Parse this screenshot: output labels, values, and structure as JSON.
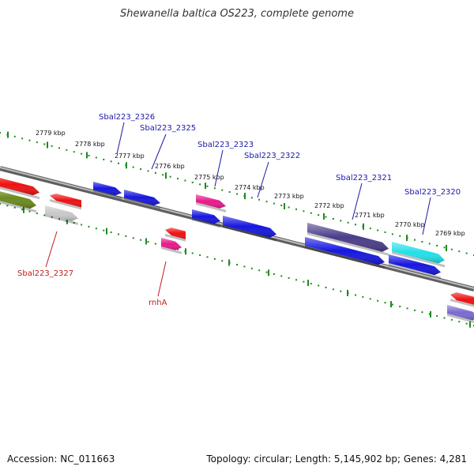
{
  "title": "Shewanella baltica OS223, complete genome",
  "footer": {
    "accession": "Accession: NC_011663",
    "summary": "Topology: circular; Length: 5,145,902 bp; Genes: 4,281"
  },
  "colors": {
    "backbone": "#8a8a8a",
    "ticks": "#1f8a1f",
    "label_blue": "#1a1aa8",
    "label_red": "#c41a1a",
    "blue": "#1616e0",
    "red": "#ee1111",
    "magenta": "#e8188c",
    "dark_purple": "#4a3d8a",
    "cyan": "#22e0e8",
    "olive": "#6b8a1e",
    "gray": "#c8c8c8",
    "lavender": "#7a6ad0"
  },
  "kbp_labels": [
    "2779 kbp",
    "2778 kbp",
    "2777 kbp",
    "2776 kbp",
    "2775 kbp",
    "2774 kbp",
    "2773 kbp",
    "2772 kbp",
    "2771 kbp",
    "2770 kbp",
    "2769 kbp"
  ],
  "gene_labels": [
    "Sbal223_2326",
    "Sbal223_2325",
    "Sbal223_2323",
    "Sbal223_2322",
    "Sbal223_2321",
    "Sbal223_2320",
    "Sbal223_2327",
    "rnhA"
  ]
}
